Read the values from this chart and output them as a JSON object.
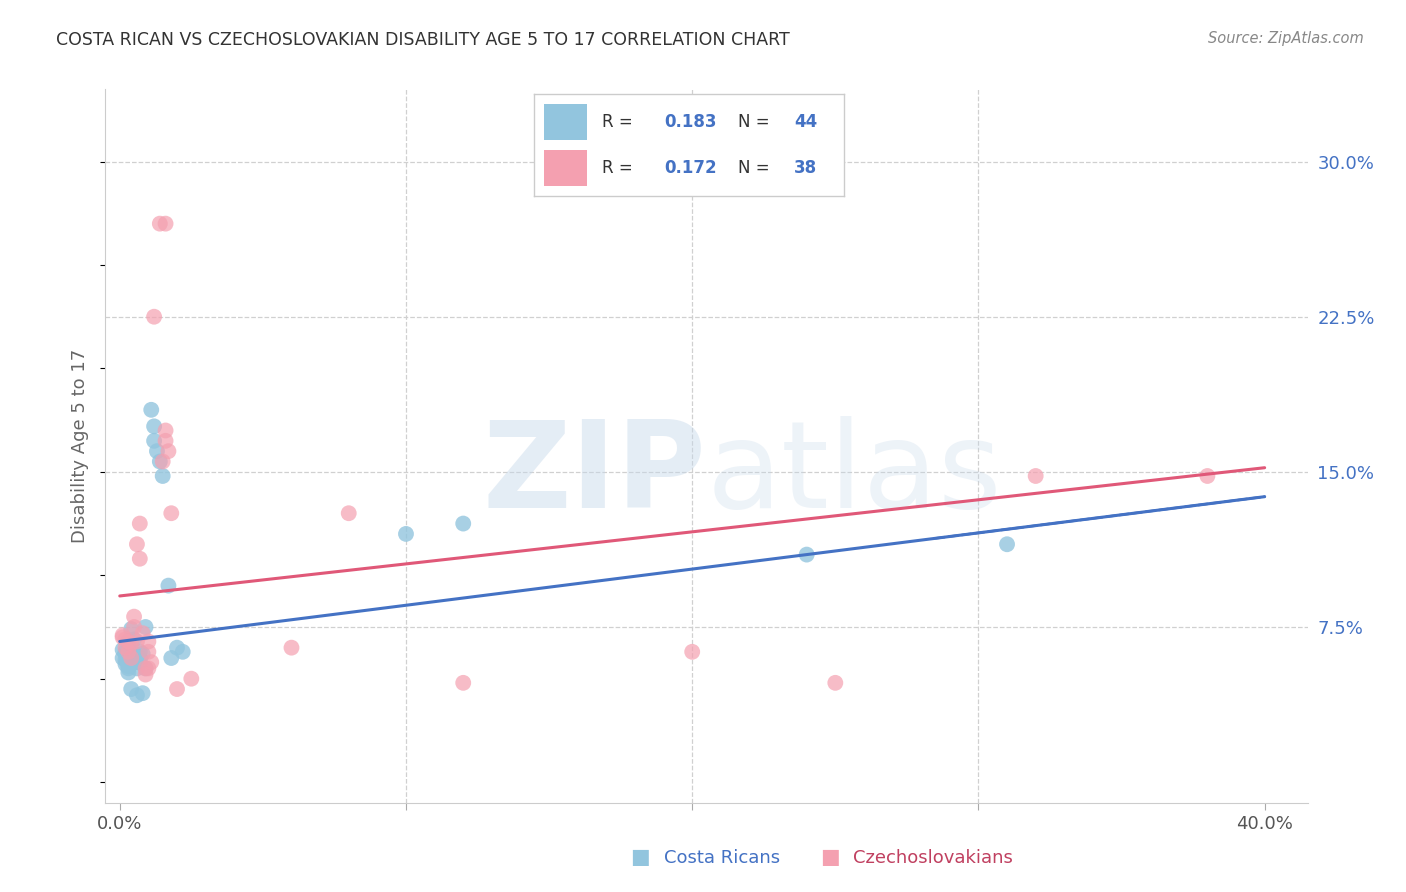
{
  "title": "COSTA RICAN VS CZECHOSLOVAKIAN DISABILITY AGE 5 TO 17 CORRELATION CHART",
  "source": "Source: ZipAtlas.com",
  "ylabel": "Disability Age 5 to 17",
  "ytick_values": [
    0.075,
    0.15,
    0.225,
    0.3
  ],
  "ytick_labels": [
    "7.5%",
    "15.0%",
    "22.5%",
    "30.0%"
  ],
  "xtick_values": [
    0.0,
    0.1,
    0.2,
    0.3,
    0.4
  ],
  "xtick_labels": [
    "0.0%",
    "",
    "",
    "",
    "40.0%"
  ],
  "xlim": [
    -0.005,
    0.415
  ],
  "ylim": [
    -0.01,
    0.335
  ],
  "blue_color": "#92c5de",
  "pink_color": "#f4a0b0",
  "blue_line_color": "#4472c4",
  "pink_line_color": "#e05878",
  "blue_scatter": [
    [
      0.001,
      0.064
    ],
    [
      0.001,
      0.06
    ],
    [
      0.002,
      0.062
    ],
    [
      0.002,
      0.057
    ],
    [
      0.002,
      0.063
    ],
    [
      0.002,
      0.059
    ],
    [
      0.003,
      0.058
    ],
    [
      0.003,
      0.056
    ],
    [
      0.003,
      0.055
    ],
    [
      0.003,
      0.053
    ],
    [
      0.003,
      0.068
    ],
    [
      0.003,
      0.06
    ],
    [
      0.004,
      0.062
    ],
    [
      0.004,
      0.058
    ],
    [
      0.004,
      0.074
    ],
    [
      0.004,
      0.045
    ],
    [
      0.005,
      0.069
    ],
    [
      0.005,
      0.061
    ],
    [
      0.005,
      0.062
    ],
    [
      0.005,
      0.058
    ],
    [
      0.006,
      0.058
    ],
    [
      0.006,
      0.055
    ],
    [
      0.006,
      0.042
    ],
    [
      0.007,
      0.063
    ],
    [
      0.007,
      0.06
    ],
    [
      0.007,
      0.058
    ],
    [
      0.008,
      0.043
    ],
    [
      0.008,
      0.062
    ],
    [
      0.009,
      0.055
    ],
    [
      0.009,
      0.075
    ],
    [
      0.011,
      0.18
    ],
    [
      0.012,
      0.172
    ],
    [
      0.012,
      0.165
    ],
    [
      0.013,
      0.16
    ],
    [
      0.014,
      0.155
    ],
    [
      0.015,
      0.148
    ],
    [
      0.017,
      0.095
    ],
    [
      0.018,
      0.06
    ],
    [
      0.02,
      0.065
    ],
    [
      0.022,
      0.063
    ],
    [
      0.1,
      0.12
    ],
    [
      0.12,
      0.125
    ],
    [
      0.24,
      0.11
    ],
    [
      0.31,
      0.115
    ]
  ],
  "pink_scatter": [
    [
      0.001,
      0.071
    ],
    [
      0.001,
      0.07
    ],
    [
      0.002,
      0.069
    ],
    [
      0.002,
      0.065
    ],
    [
      0.003,
      0.068
    ],
    [
      0.003,
      0.063
    ],
    [
      0.004,
      0.067
    ],
    [
      0.004,
      0.06
    ],
    [
      0.005,
      0.08
    ],
    [
      0.005,
      0.075
    ],
    [
      0.006,
      0.115
    ],
    [
      0.006,
      0.068
    ],
    [
      0.007,
      0.125
    ],
    [
      0.007,
      0.108
    ],
    [
      0.008,
      0.072
    ],
    [
      0.009,
      0.055
    ],
    [
      0.009,
      0.052
    ],
    [
      0.01,
      0.068
    ],
    [
      0.01,
      0.063
    ],
    [
      0.01,
      0.055
    ],
    [
      0.011,
      0.058
    ],
    [
      0.012,
      0.225
    ],
    [
      0.014,
      0.27
    ],
    [
      0.016,
      0.27
    ],
    [
      0.015,
      0.155
    ],
    [
      0.016,
      0.17
    ],
    [
      0.016,
      0.165
    ],
    [
      0.017,
      0.16
    ],
    [
      0.018,
      0.13
    ],
    [
      0.02,
      0.045
    ],
    [
      0.025,
      0.05
    ],
    [
      0.06,
      0.065
    ],
    [
      0.08,
      0.13
    ],
    [
      0.12,
      0.048
    ],
    [
      0.2,
      0.063
    ],
    [
      0.25,
      0.048
    ],
    [
      0.32,
      0.148
    ],
    [
      0.38,
      0.148
    ]
  ],
  "blue_trend_x": [
    0.0,
    0.4
  ],
  "blue_trend_y": [
    0.068,
    0.138
  ],
  "pink_trend_x": [
    0.0,
    0.4
  ],
  "pink_trend_y": [
    0.09,
    0.152
  ],
  "blue_dashed_from": 0.285,
  "legend_R_blue": "0.183",
  "legend_N_blue": "44",
  "legend_R_pink": "0.172",
  "legend_N_pink": "38",
  "background_color": "#ffffff",
  "grid_color": "#d0d0d0",
  "title_color": "#333333",
  "right_tick_color": "#4472c4",
  "label_color_blue": "#4472c4",
  "label_color_pink": "#c04060"
}
